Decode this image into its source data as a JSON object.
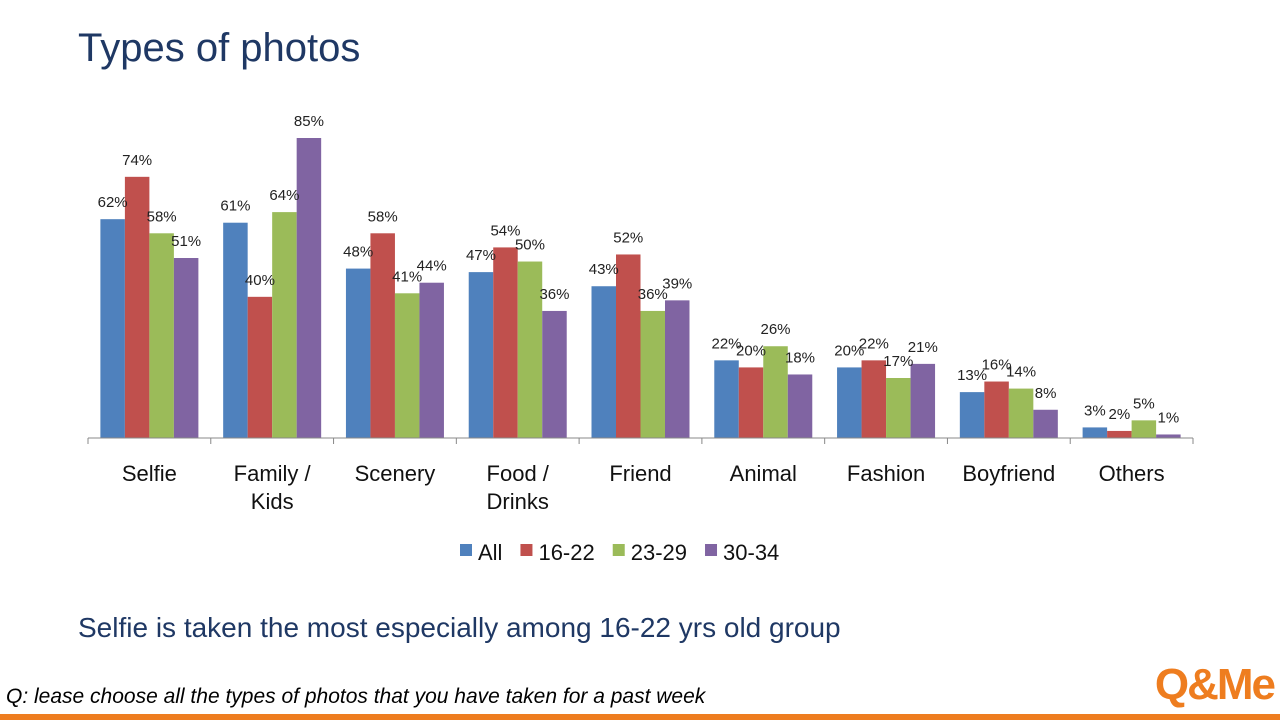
{
  "slide": {
    "title": "Types of photos",
    "conclusion": "Selfie is taken the most especially among 16-22 yrs old group",
    "question": "Q: lease choose all the types of photos that you have taken for a past week",
    "logo": "Q&Me"
  },
  "colors": {
    "title": "#1f3864",
    "accent": "#ee7d1f"
  },
  "chart_data": {
    "type": "bar",
    "title": "",
    "xlabel": "",
    "ylabel": "",
    "ylim": [
      0,
      90
    ],
    "grid": false,
    "legend": "bottom",
    "value_suffix": "%",
    "categories": [
      [
        "Selfie"
      ],
      [
        "Family /",
        "Kids"
      ],
      [
        "Scenery"
      ],
      [
        "Food /",
        "Drinks"
      ],
      [
        "Friend"
      ],
      [
        "Animal"
      ],
      [
        "Fashion"
      ],
      [
        "Boyfriend"
      ],
      [
        "Others"
      ]
    ],
    "series": [
      {
        "name": "All",
        "color": "#4f81bd",
        "values": [
          62,
          61,
          48,
          47,
          43,
          22,
          20,
          13,
          3
        ]
      },
      {
        "name": "16-22",
        "color": "#c0504d",
        "values": [
          74,
          40,
          58,
          54,
          52,
          20,
          22,
          16,
          2
        ]
      },
      {
        "name": "23-29",
        "color": "#9bbb59",
        "values": [
          58,
          64,
          41,
          50,
          36,
          26,
          17,
          14,
          5
        ]
      },
      {
        "name": "30-34",
        "color": "#8064a2",
        "values": [
          51,
          85,
          44,
          36,
          39,
          18,
          21,
          8,
          1
        ]
      }
    ]
  }
}
